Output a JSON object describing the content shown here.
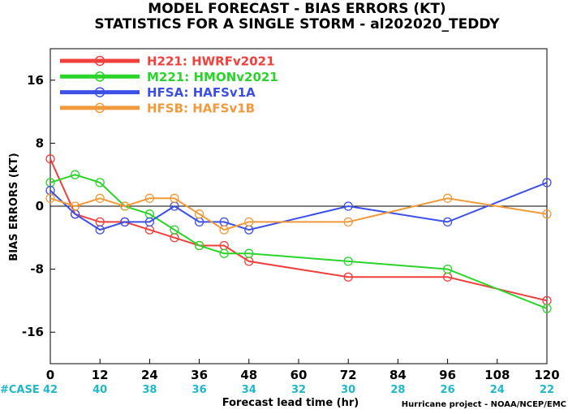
{
  "chart_data": {
    "type": "line",
    "title": "MODEL FORECAST - BIAS ERRORS (KT)",
    "subtitle": "STATISTICS FOR A SINGLE STORM - al202020_TEDDY",
    "xlabel": "Forecast lead time (hr)",
    "ylabel": "BIAS ERRORS (KT)",
    "xlim": [
      0,
      120
    ],
    "ylim": [
      -20,
      20
    ],
    "x_ticks": [
      "0",
      "12",
      "24",
      "36",
      "48",
      "60",
      "72",
      "84",
      "96",
      "108",
      "120"
    ],
    "y_ticks": [
      "16",
      "8",
      "0",
      "-8",
      "-16"
    ],
    "zero_line": true,
    "legend_position": "top-left",
    "case_label": "#CASE",
    "case_counts": [
      "42",
      "40",
      "38",
      "36",
      "34",
      "32",
      "30",
      "28",
      "26",
      "24",
      "22"
    ],
    "case_color": "#1fb8c8",
    "credit": "Hurricane project - NOAA/NCEP/EMC",
    "series": [
      {
        "name": "H221:",
        "label": "HWRFv2021",
        "color": "#f0403c",
        "x": [
          0,
          6,
          12,
          18,
          24,
          30,
          36,
          42,
          48,
          72,
          96,
          120
        ],
        "y": [
          6,
          -1,
          -2,
          -2,
          -3,
          -4,
          -5,
          -5,
          -7,
          -9,
          -9,
          -12
        ]
      },
      {
        "name": "M221:",
        "label": "HMONv2021",
        "color": "#2ad42a",
        "x": [
          0,
          6,
          12,
          18,
          24,
          30,
          36,
          42,
          48,
          72,
          96,
          120
        ],
        "y": [
          3,
          4,
          3,
          0,
          -1,
          -3,
          -5,
          -6,
          -6,
          -7,
          -8,
          -13
        ]
      },
      {
        "name": "HFSA:",
        "label": "HAFSv1A",
        "color": "#3c50e6",
        "x": [
          0,
          6,
          12,
          18,
          24,
          30,
          36,
          42,
          48,
          72,
          96,
          120
        ],
        "y": [
          2,
          -1,
          -3,
          -2,
          -2,
          0,
          -2,
          -2,
          -3,
          0,
          -2,
          3
        ]
      },
      {
        "name": "HFSB:",
        "label": "HAFSv1B",
        "color": "#f09a3c",
        "x": [
          0,
          6,
          12,
          18,
          24,
          30,
          36,
          42,
          48,
          72,
          96,
          120
        ],
        "y": [
          1,
          0,
          1,
          0,
          1,
          1,
          -1,
          -3,
          -2,
          -2,
          1,
          -1
        ]
      }
    ]
  }
}
